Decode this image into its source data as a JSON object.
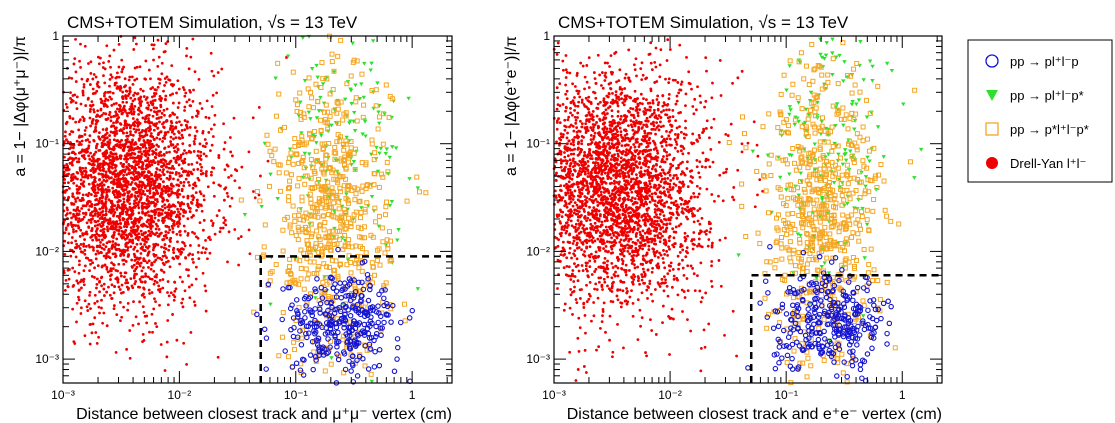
{
  "figure": {
    "legend": {
      "entries": [
        {
          "label": "pp → pl⁺l⁻p",
          "marker": "open-circle",
          "color": "#1414d2"
        },
        {
          "label": "pp → pl⁺l⁻p*",
          "marker": "filled-triangle-down",
          "color": "#2ee02e"
        },
        {
          "label": "pp → p*l⁺l⁻p*",
          "marker": "open-square",
          "color": "#f5a623"
        },
        {
          "label": "Drell-Yan l⁺l⁻",
          "marker": "filled-circle",
          "color": "#ee0000"
        }
      ]
    }
  },
  "chart_data": [
    {
      "type": "scatter",
      "title": "CMS+TOTEM Simulation, √s = 13 TeV",
      "xlabel": "Distance between closest track and μ⁺μ⁻ vertex (cm)",
      "ylabel": "a = 1− |Δφ(μ⁺μ⁻)|/π",
      "xscale": "log",
      "yscale": "log",
      "xlim": [
        0.001,
        2.2
      ],
      "ylim": [
        0.0006,
        1
      ],
      "xticks": [
        {
          "value": 0.001,
          "label": "10⁻³"
        },
        {
          "value": 0.01,
          "label": "10⁻²"
        },
        {
          "value": 0.1,
          "label": "10⁻¹"
        },
        {
          "value": 1,
          "label": "1"
        }
      ],
      "yticks": [
        {
          "value": 0.001,
          "label": "10⁻³"
        },
        {
          "value": 0.01,
          "label": "10⁻²"
        },
        {
          "value": 0.1,
          "label": "10⁻¹"
        },
        {
          "value": 1,
          "label": "1"
        }
      ],
      "selection_box": {
        "x_min": 0.05,
        "y_max": 0.009
      },
      "series": [
        {
          "name": "Drell-Yan l⁺l⁻",
          "color": "#ee0000",
          "marker": "filled-circle",
          "x_center": 0.0035,
          "y_center": 0.04,
          "x_spread": 0.38,
          "y_spread": 0.55,
          "n": 3200
        },
        {
          "name": "pp → pl⁺l⁻p*",
          "color": "#2ee02e",
          "marker": "filled-triangle-down",
          "x_center": 0.25,
          "y_center": 0.08,
          "x_spread": 0.25,
          "y_spread": 0.6,
          "n": 180
        },
        {
          "name": "pp → p*l⁺l⁻p*",
          "color": "#f5a623",
          "marker": "open-square",
          "x_center": 0.2,
          "y_center": 0.02,
          "x_spread": 0.25,
          "y_spread": 0.7,
          "n": 650
        },
        {
          "name": "pp → pl⁺l⁻p",
          "color": "#1414d2",
          "marker": "open-circle",
          "x_center": 0.25,
          "y_center": 0.0022,
          "x_spread": 0.25,
          "y_spread": 0.22,
          "n": 320
        }
      ]
    },
    {
      "type": "scatter",
      "title": "CMS+TOTEM Simulation, √s = 13 TeV",
      "xlabel": "Distance between closest track and e⁺e⁻ vertex (cm)",
      "ylabel": "a = 1− |Δφ(e⁺e⁻)|/π",
      "xscale": "log",
      "yscale": "log",
      "xlim": [
        0.001,
        2.2
      ],
      "ylim": [
        0.0006,
        1
      ],
      "xticks": [
        {
          "value": 0.001,
          "label": "10⁻³"
        },
        {
          "value": 0.01,
          "label": "10⁻²"
        },
        {
          "value": 0.1,
          "label": "10⁻¹"
        },
        {
          "value": 1,
          "label": "1"
        }
      ],
      "yticks": [
        {
          "value": 0.001,
          "label": "10⁻³"
        },
        {
          "value": 0.01,
          "label": "10⁻²"
        },
        {
          "value": 0.1,
          "label": "10⁻¹"
        },
        {
          "value": 1,
          "label": "1"
        }
      ],
      "selection_box": {
        "x_min": 0.05,
        "y_max": 0.006
      },
      "series": [
        {
          "name": "Drell-Yan l⁺l⁻",
          "color": "#ee0000",
          "marker": "filled-circle",
          "x_center": 0.0035,
          "y_center": 0.04,
          "x_spread": 0.38,
          "y_spread": 0.55,
          "n": 3200
        },
        {
          "name": "pp → pl⁺l⁻p*",
          "color": "#2ee02e",
          "marker": "filled-triangle-down",
          "x_center": 0.25,
          "y_center": 0.08,
          "x_spread": 0.25,
          "y_spread": 0.6,
          "n": 180
        },
        {
          "name": "pp → p*l⁺l⁻p*",
          "color": "#f5a623",
          "marker": "open-square",
          "x_center": 0.2,
          "y_center": 0.02,
          "x_spread": 0.25,
          "y_spread": 0.7,
          "n": 650
        },
        {
          "name": "pp → pl⁺l⁻p",
          "color": "#1414d2",
          "marker": "open-circle",
          "x_center": 0.25,
          "y_center": 0.0022,
          "x_spread": 0.25,
          "y_spread": 0.22,
          "n": 320
        }
      ]
    }
  ]
}
